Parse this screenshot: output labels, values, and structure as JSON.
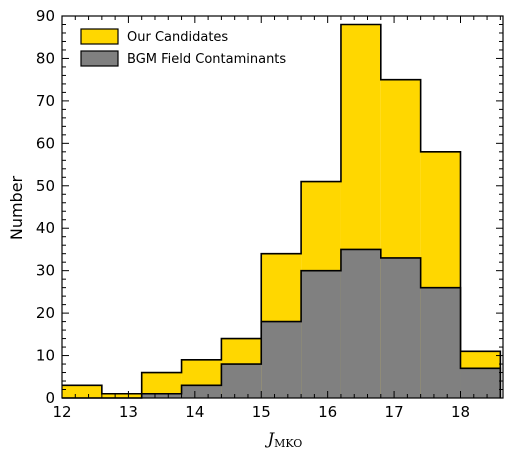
{
  "chart_data": {
    "type": "bar",
    "subtype": "step-histogram-overlay",
    "title": "",
    "xlabel": {
      "main": "J",
      "subscript": "MKO"
    },
    "ylabel": "Number",
    "xlim": [
      12,
      18.64
    ],
    "ylim": [
      0,
      90
    ],
    "xticks": [
      12,
      13,
      14,
      15,
      16,
      17,
      18
    ],
    "yticks": [
      0,
      10,
      20,
      30,
      40,
      50,
      60,
      70,
      80,
      90
    ],
    "bin_edges": [
      12.0,
      12.6,
      13.2,
      13.8,
      14.4,
      15.0,
      15.6,
      16.2,
      16.8,
      17.4,
      18.0,
      18.6
    ],
    "legend_position": "top-left",
    "series": [
      {
        "name": "Our Candidates",
        "color": "#FFD700",
        "values": [
          3,
          1,
          6,
          9,
          14,
          34,
          51,
          88,
          75,
          58,
          11
        ]
      },
      {
        "name": "BGM Field Contaminants",
        "color": "#808080",
        "values": [
          0,
          0,
          1,
          3,
          8,
          18,
          30,
          35,
          33,
          26,
          7
        ]
      }
    ]
  }
}
